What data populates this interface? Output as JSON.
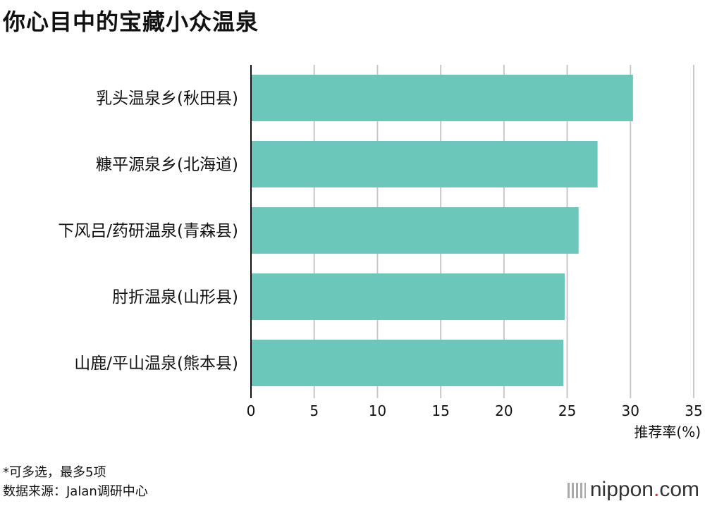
{
  "chart_data": {
    "type": "bar",
    "orientation": "horizontal",
    "title": "你心目中的宝藏小众温泉",
    "categories": [
      "乳头温泉乡(秋田县)",
      "糠平源泉乡(北海道)",
      "下风吕/药研温泉(青森县)",
      "肘折温泉(山形县)",
      "山鹿/平山温泉(熊本县)"
    ],
    "values": [
      30.2,
      27.4,
      25.9,
      24.8,
      24.7
    ],
    "xlabel": "推荐率(%)",
    "ylabel": "",
    "xlim": [
      0,
      35
    ],
    "xticks": [
      "0",
      "5",
      "10",
      "15",
      "20",
      "25",
      "30",
      "35"
    ],
    "grid": true,
    "bar_color": "#6cc7bb"
  },
  "notes": [
    "*可多选，最多5项",
    "数据来源：Jalan调研中心"
  ],
  "logo": {
    "name": "nippon",
    "dot": ".",
    "suffix": "com"
  }
}
